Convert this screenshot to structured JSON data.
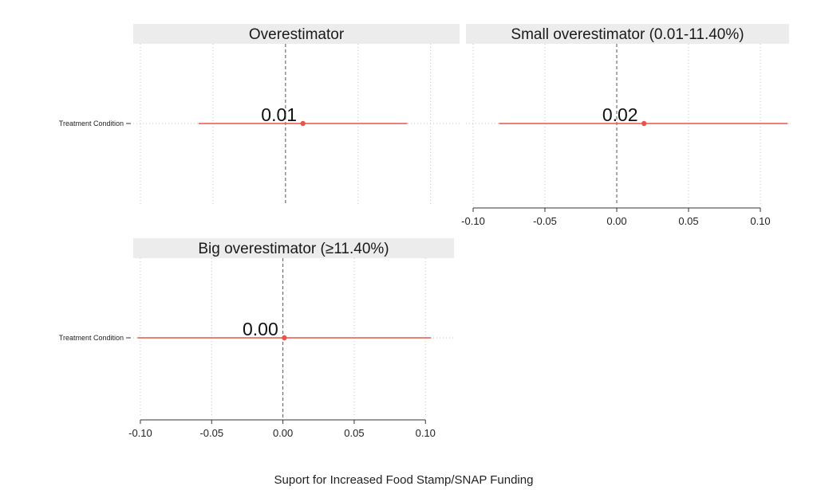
{
  "chart_data": {
    "type": "coefficient-plot",
    "title": "",
    "xlabel": "Suport for Increased Food Stamp/SNAP Funding",
    "xlim": [
      -0.105,
      0.12
    ],
    "xticks": [
      -0.1,
      -0.05,
      0.0,
      0.05,
      0.1
    ],
    "xtick_labels": [
      "-0.10",
      "-0.05",
      "0.00",
      "0.05",
      "0.10"
    ],
    "reference_line": 0,
    "grid": "vertical dotted",
    "series_color": "#e8554a",
    "panels": [
      {
        "title": "Overestimator",
        "term": "Treatment Condition",
        "estimate": 0.012,
        "estimate_label": "0.01",
        "ci": [
          -0.06,
          0.084
        ],
        "show_x_axis": false,
        "show_y_label": true
      },
      {
        "title": "Small overestimator (0.01-11.40%)",
        "term": "Treatment Condition",
        "estimate": 0.019,
        "estimate_label": "0.02",
        "ci": [
          -0.082,
          0.119
        ],
        "show_x_axis": true,
        "show_y_label": false
      },
      {
        "title": "Big overestimator (≥11.40%)",
        "term": "Treatment Condition",
        "estimate": 0.001,
        "estimate_label": "0.00",
        "ci": [
          -0.102,
          0.104
        ],
        "show_x_axis": true,
        "show_y_label": true
      }
    ]
  }
}
